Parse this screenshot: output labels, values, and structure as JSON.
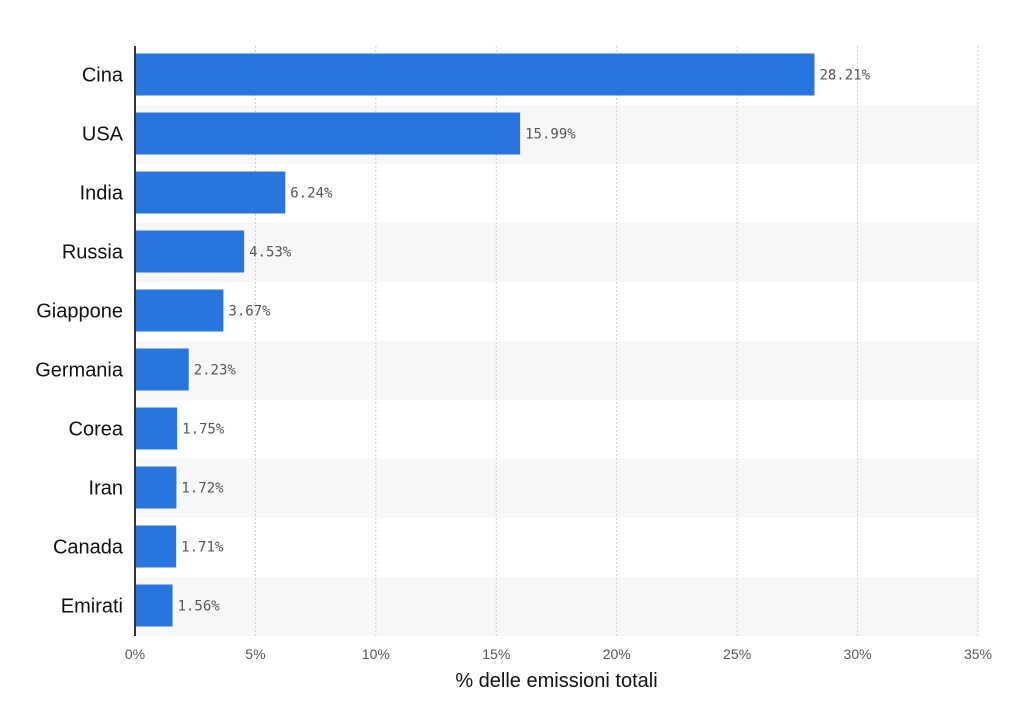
{
  "chart_data": {
    "type": "bar",
    "orientation": "horizontal",
    "categories": [
      "Cina",
      "USA",
      "India",
      "Russia",
      "Giappone",
      "Germania",
      "Corea",
      "Iran",
      "Canada",
      "Emirati"
    ],
    "values": [
      28.21,
      15.99,
      6.24,
      4.53,
      3.67,
      2.23,
      1.75,
      1.72,
      1.71,
      1.56
    ],
    "value_labels": [
      "28.21%",
      "15.99%",
      "6.24%",
      "4.53%",
      "3.67%",
      "2.23%",
      "1.75%",
      "1.72%",
      "1.71%",
      "1.56%"
    ],
    "xlabel": "% delle emissioni totali",
    "ylabel": "",
    "xlim": [
      0,
      35
    ],
    "x_ticks": [
      0,
      5,
      10,
      15,
      20,
      25,
      30,
      35
    ],
    "x_tick_labels": [
      "0%",
      "5%",
      "10%",
      "15%",
      "20%",
      "25%",
      "30%",
      "35%"
    ],
    "grid": true,
    "colors": {
      "bar": "#2876dd",
      "band": "#f7f7f7",
      "grid": "#cccccc",
      "axis": "#333333"
    }
  }
}
